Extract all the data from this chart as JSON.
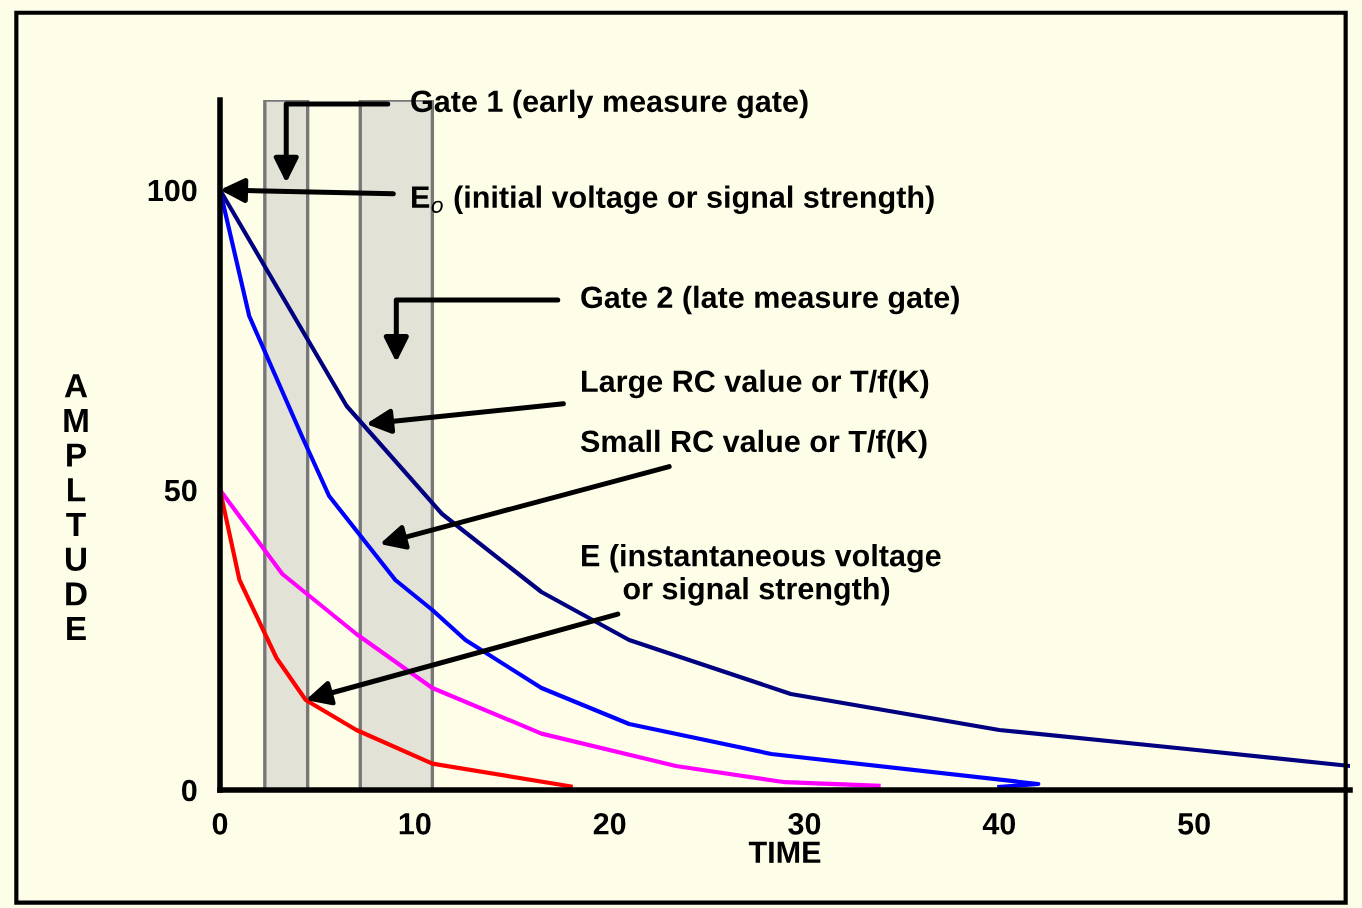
{
  "chart_data": {
    "type": "line",
    "xlabel": "TIME",
    "ylabel": "AMPLTUDE",
    "xlim": [
      0,
      58
    ],
    "ylim": [
      0,
      115
    ],
    "xticks": [
      0,
      10,
      20,
      30,
      40,
      50
    ],
    "yticks": [
      0,
      50,
      100
    ],
    "grid": false,
    "legend": false,
    "series": [
      {
        "color": "#000080",
        "x": [
          0,
          6.5,
          11.4,
          16.5,
          21,
          29.3,
          40,
          50,
          58
        ],
        "values": [
          100,
          64,
          46,
          33,
          25,
          16,
          10,
          6.7,
          4
        ]
      },
      {
        "color": "#0000ff",
        "x": [
          0,
          1.5,
          4.2,
          5.6,
          9,
          10.9,
          12.6,
          16.5,
          21,
          28.3,
          42,
          40
        ],
        "values": [
          100,
          79,
          59,
          49,
          35,
          30,
          25,
          17,
          11,
          6,
          1,
          0.5
        ]
      },
      {
        "color": "#ff00ff",
        "x": [
          0,
          3.2,
          7,
          10.9,
          16.5,
          23.4,
          29,
          33.8
        ],
        "values": [
          50,
          36,
          26,
          17,
          9.4,
          4,
          1.3,
          0.7
        ]
      },
      {
        "color": "#ff0000",
        "x": [
          0,
          1,
          2.9,
          4.4,
          7,
          10.9,
          18
        ],
        "values": [
          50,
          35,
          22,
          15,
          10,
          4.4,
          0.6
        ]
      }
    ],
    "bands": [
      {
        "axis": "x",
        "from": 2.3,
        "to": 4.5,
        "color": "#e2e2d6"
      },
      {
        "axis": "x",
        "from": 7.2,
        "to": 10.9,
        "color": "#e2e2d6"
      }
    ],
    "annotations": [
      "Gate 1 (early measure gate)",
      {
        "text": "E$_{o}$ (initial voltage or signal strength)",
        "x": 0,
        "y": 100
      },
      "Gate 2 (late measure gate)",
      {
        "text": "Large RC value or T/f(K)",
        "x": 7.5,
        "y": 61
      },
      {
        "text": "Small RC value or T/f(K)",
        "x": 8.2,
        "y": 41
      },
      {
        "text": "E (instantaneous voltage\n     or signal strength)",
        "x": 4.4,
        "y": 15
      }
    ]
  }
}
